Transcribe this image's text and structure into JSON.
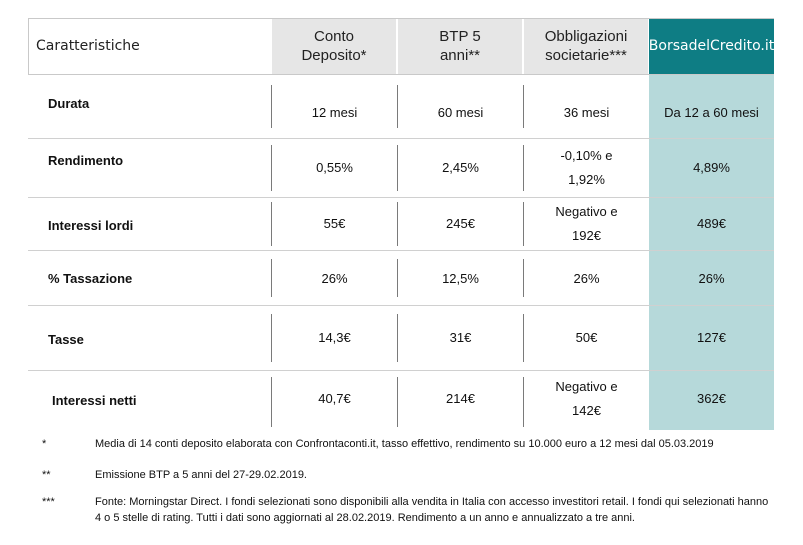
{
  "header": {
    "label": "Caratteristiche",
    "col1": "Conto Deposito*",
    "col2": "BTP 5 anni**",
    "col3": "Obbligazioni societarie***",
    "col4": "BorsadelCredito.it"
  },
  "rows": [
    {
      "label": "Durata",
      "c1": "12 mesi",
      "c2": "60 mesi",
      "c3": "36 mesi",
      "c4": "Da 12 a 60 mesi"
    },
    {
      "label": "Rendimento",
      "c1": "0,55%",
      "c2": "2,45%",
      "c3": "-0,10% e 1,92%",
      "c4": "4,89%"
    },
    {
      "label": "Interessi lordi",
      "c1": "55€",
      "c2": "245€",
      "c3": "Negativo e 192€",
      "c4": "489€"
    },
    {
      "label": "% Tassazione",
      "c1": "26%",
      "c2": "12,5%",
      "c3": "26%",
      "c4": "26%"
    },
    {
      "label": "Tasse",
      "c1": "14,3€",
      "c2": "31€",
      "c3": "50€",
      "c4": "127€"
    },
    {
      "label": "Interessi netti",
      "c1": "40,7€",
      "c2": "214€",
      "c3": "Negativo e 142€",
      "c4": "362€"
    }
  ],
  "notes": [
    {
      "mark": "*",
      "text": "Media di 14 conti deposito elaborata con Confrontaconti.it, tasso effettivo, rendimento su 10.000 euro a 12 mesi dal 05.03.2019"
    },
    {
      "mark": "**",
      "text": "Emissione BTP a 5 anni del 27-29.02.2019."
    },
    {
      "mark": "***",
      "text": "Fonte: Morningstar Direct. I fondi selezionati sono disponibili alla vendita in Italia con accesso investitori retail. I fondi qui selezionati hanno 4 o 5 stelle di rating. Tutti i dati sono aggiornati al 28.02.2019. Rendimento a un anno e annualizzato a tre anni."
    }
  ],
  "colors": {
    "brand": "#0e7d84",
    "brand_light": "#b6d9da",
    "header_grey": "#e6e6e6"
  }
}
